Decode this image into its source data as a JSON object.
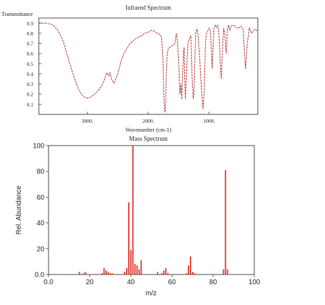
{
  "chart_data": [
    {
      "type": "line",
      "title": "Infrared Spectrum",
      "xlabel": "Wavenumber (cm-1)",
      "ylabel": "Transmittance",
      "xlim": [
        3800,
        200
      ],
      "ylim": [
        0,
        0.95
      ],
      "xticks": [
        "3000.",
        "2000.",
        "1000."
      ],
      "xtick_values": [
        3000,
        2000,
        1000
      ],
      "yticks": [
        "0.9",
        "0.8",
        "0.7",
        "0.6",
        "0.5",
        "0.4",
        "0.3",
        "0.2",
        "0.1"
      ],
      "ytick_values": [
        0.9,
        0.8,
        0.7,
        0.6,
        0.5,
        0.4,
        0.3,
        0.2,
        0.1
      ],
      "line_color": "#b03030",
      "series": [
        {
          "x": [
            3800,
            3700,
            3600,
            3550,
            3500,
            3450,
            3400,
            3350,
            3300,
            3250,
            3200,
            3150,
            3100,
            3050,
            3000,
            2950,
            2900,
            2850,
            2800,
            2750,
            2700,
            2680,
            2650,
            2630,
            2600,
            2560,
            2500,
            2450,
            2400,
            2300,
            2200,
            2100,
            2050,
            2000,
            1950,
            1900,
            1850,
            1800,
            1780,
            1760,
            1745,
            1735,
            1725,
            1715,
            1705,
            1690,
            1670,
            1650,
            1600,
            1560,
            1540,
            1520,
            1500,
            1480,
            1465,
            1450,
            1435,
            1420,
            1410,
            1400,
            1390,
            1380,
            1350,
            1320,
            1300,
            1290,
            1280,
            1270,
            1260,
            1250,
            1240,
            1220,
            1200,
            1180,
            1150,
            1120,
            1100,
            1080,
            1060,
            1050,
            1040,
            1000,
            980,
            960,
            950,
            940,
            920,
            900,
            880,
            860,
            840,
            820,
            800,
            780,
            760,
            740,
            720,
            700,
            680,
            660,
            640,
            600,
            560,
            520,
            480,
            440,
            420,
            400,
            380,
            340,
            300,
            250,
            200
          ],
          "values": [
            0.9,
            0.9,
            0.89,
            0.87,
            0.84,
            0.79,
            0.72,
            0.62,
            0.52,
            0.42,
            0.33,
            0.25,
            0.2,
            0.17,
            0.16,
            0.17,
            0.19,
            0.22,
            0.25,
            0.3,
            0.38,
            0.41,
            0.38,
            0.41,
            0.34,
            0.31,
            0.4,
            0.52,
            0.6,
            0.7,
            0.75,
            0.78,
            0.8,
            0.81,
            0.83,
            0.82,
            0.8,
            0.78,
            0.76,
            0.55,
            0.2,
            0.05,
            0.02,
            0.1,
            0.35,
            0.6,
            0.65,
            0.66,
            0.68,
            0.7,
            0.8,
            0.72,
            0.5,
            0.2,
            0.3,
            0.15,
            0.4,
            0.62,
            0.66,
            0.35,
            0.15,
            0.3,
            0.7,
            0.75,
            0.78,
            0.6,
            0.35,
            0.25,
            0.15,
            0.2,
            0.45,
            0.8,
            0.84,
            0.78,
            0.5,
            0.2,
            0.05,
            0.25,
            0.7,
            0.78,
            0.8,
            0.85,
            0.83,
            0.6,
            0.45,
            0.6,
            0.85,
            0.88,
            0.86,
            0.88,
            0.8,
            0.55,
            0.35,
            0.65,
            0.85,
            0.78,
            0.6,
            0.83,
            0.88,
            0.83,
            0.87,
            0.88,
            0.86,
            0.85,
            0.87,
            0.84,
            0.6,
            0.45,
            0.65,
            0.85,
            0.8,
            0.84,
            0.82
          ]
        }
      ]
    },
    {
      "type": "bar",
      "title": "Mass Spectrum",
      "xlabel": "m/z",
      "ylabel": "Rel. Abundance",
      "xlim": [
        0,
        100
      ],
      "ylim": [
        0,
        100
      ],
      "xticks": [
        "0.0",
        "20",
        "40",
        "60",
        "80",
        "100"
      ],
      "xtick_values": [
        0,
        20,
        40,
        60,
        80,
        100
      ],
      "yticks": [
        "0.0",
        "20",
        "40",
        "60",
        "80",
        "100"
      ],
      "ytick_values": [
        0,
        20,
        40,
        60,
        80,
        100
      ],
      "bar_color": "#e0302a",
      "x": [
        15,
        17,
        18,
        26,
        27,
        28,
        29,
        30,
        31,
        37,
        38,
        39,
        40,
        41,
        42,
        43,
        44,
        45,
        53,
        55,
        56,
        57,
        58,
        67,
        68,
        69,
        70,
        71,
        85,
        86,
        87
      ],
      "values": [
        2,
        1,
        2,
        1,
        5,
        3,
        2,
        1,
        1,
        2,
        5,
        56,
        19,
        100,
        8,
        7,
        4,
        11,
        2,
        1,
        3,
        5,
        1,
        1,
        7,
        14,
        2,
        1,
        4,
        81,
        4
      ]
    }
  ]
}
